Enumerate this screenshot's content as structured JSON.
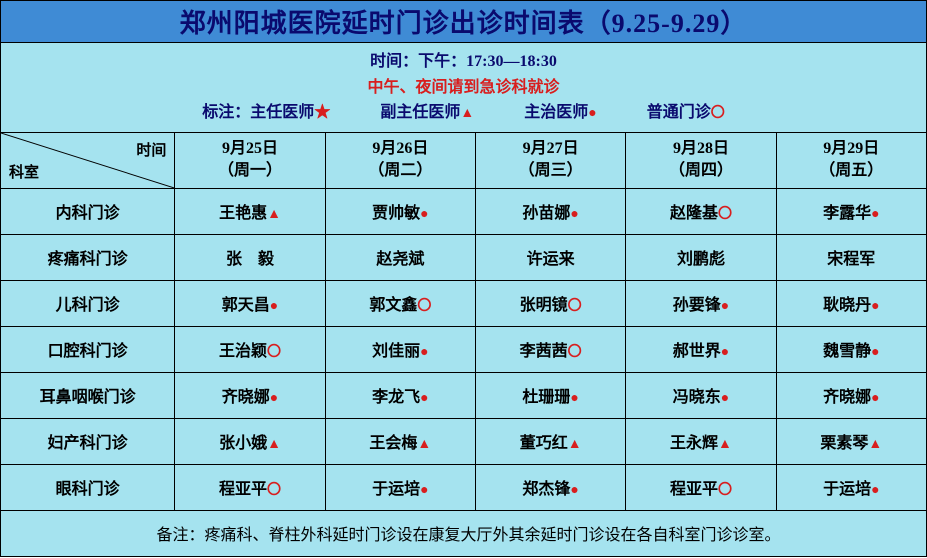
{
  "title": "郑州阳城医院延时门诊出诊时间表（9.25-9.29）",
  "time_label": "时间：下午：17:30—18:30",
  "warning": "中午、夜间请到急诊科就诊",
  "legend_prefix": "标注：",
  "legend": [
    {
      "label": "主任医师",
      "icon": "star"
    },
    {
      "label": "副主任医师",
      "icon": "triangle-solid"
    },
    {
      "label": "主治医师",
      "icon": "circle-solid"
    },
    {
      "label": "普通门诊",
      "icon": "circle-hollow"
    }
  ],
  "diag_dept": "科室",
  "diag_time": "时间",
  "columns": [
    {
      "date": "9月25日",
      "weekday": "（周一）"
    },
    {
      "date": "9月26日",
      "weekday": "（周二）"
    },
    {
      "date": "9月27日",
      "weekday": "（周三）"
    },
    {
      "date": "9月28日",
      "weekday": "（周四）"
    },
    {
      "date": "9月29日",
      "weekday": "（周五）"
    }
  ],
  "rows": [
    {
      "dept": "内科门诊",
      "cells": [
        {
          "name": "王艳惠",
          "icon": "triangle-solid"
        },
        {
          "name": "贾帅敏",
          "icon": "circle-solid"
        },
        {
          "name": "孙苗娜",
          "icon": "circle-solid"
        },
        {
          "name": "赵隆基",
          "icon": "circle-hollow"
        },
        {
          "name": "李露华",
          "icon": "circle-solid"
        }
      ]
    },
    {
      "dept": "疼痛科门诊",
      "cells": [
        {
          "name": "张　毅",
          "icon": ""
        },
        {
          "name": "赵尧斌",
          "icon": ""
        },
        {
          "name": "许运来",
          "icon": ""
        },
        {
          "name": "刘鹏彪",
          "icon": ""
        },
        {
          "name": "宋程军",
          "icon": ""
        }
      ]
    },
    {
      "dept": "儿科门诊",
      "cells": [
        {
          "name": "郭天昌",
          "icon": "circle-solid"
        },
        {
          "name": "郭文鑫",
          "icon": "circle-hollow"
        },
        {
          "name": "张明镜",
          "icon": "circle-hollow"
        },
        {
          "name": "孙要锋",
          "icon": "circle-solid"
        },
        {
          "name": "耿晓丹",
          "icon": "circle-solid"
        }
      ]
    },
    {
      "dept": "口腔科门诊",
      "cells": [
        {
          "name": "王治颖",
          "icon": "circle-hollow"
        },
        {
          "name": "刘佳丽",
          "icon": "circle-solid"
        },
        {
          "name": "李茜茜",
          "icon": "circle-hollow"
        },
        {
          "name": "郝世界",
          "icon": "circle-solid"
        },
        {
          "name": "魏雪静",
          "icon": "circle-solid"
        }
      ]
    },
    {
      "dept": "耳鼻咽喉门诊",
      "cells": [
        {
          "name": "齐晓娜",
          "icon": "circle-solid"
        },
        {
          "name": "李龙飞",
          "icon": "circle-solid"
        },
        {
          "name": "杜珊珊",
          "icon": "circle-solid"
        },
        {
          "name": "冯晓东",
          "icon": "circle-solid"
        },
        {
          "name": "齐晓娜",
          "icon": "circle-solid"
        }
      ]
    },
    {
      "dept": "妇产科门诊",
      "cells": [
        {
          "name": "张小娥",
          "icon": "triangle-solid"
        },
        {
          "name": "王会梅",
          "icon": "triangle-solid"
        },
        {
          "name": "董巧红",
          "icon": "triangle-solid"
        },
        {
          "name": "王永辉",
          "icon": "triangle-solid"
        },
        {
          "name": "栗素琴",
          "icon": "triangle-solid"
        }
      ]
    },
    {
      "dept": "眼科门诊",
      "cells": [
        {
          "name": "程亚平",
          "icon": "circle-hollow"
        },
        {
          "name": "于运培",
          "icon": "circle-solid"
        },
        {
          "name": "郑杰锋",
          "icon": "circle-solid"
        },
        {
          "name": "程亚平",
          "icon": "circle-hollow"
        },
        {
          "name": "于运培",
          "icon": "circle-solid"
        }
      ]
    }
  ],
  "note": "备注：疼痛科、脊柱外科延时门诊设在康复大厅外其余延时门诊设在各自科室门诊诊室。",
  "icons": {
    "star": "★",
    "triangle-solid": "▲",
    "circle-solid": "●",
    "circle-hollow": "〇"
  },
  "colors": {
    "header_bg": "#3f8bd5",
    "body_bg": "#a5e3ef",
    "title_text": "#0a0a6e",
    "icon_color": "#d81e1e",
    "border": "#000000"
  }
}
